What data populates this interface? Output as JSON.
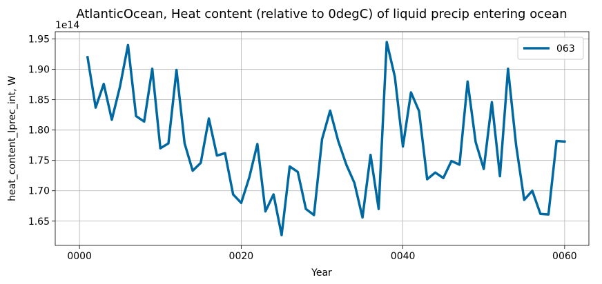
{
  "chart_data": {
    "type": "line",
    "title": "AtlanticOcean, Heat content (relative to 0degC) of liquid precip entering ocean",
    "xlabel": "Year",
    "ylabel": "heat_content_lprec_int, W",
    "y_offset_label": "1e14",
    "xlim": [
      -3,
      63
    ],
    "ylim": [
      1.61,
      1.962
    ],
    "x_ticks": [
      0,
      20,
      40,
      60
    ],
    "x_tick_labels": [
      "0000",
      "0020",
      "0040",
      "0060"
    ],
    "y_ticks": [
      1.65,
      1.7,
      1.75,
      1.8,
      1.85,
      1.9,
      1.95
    ],
    "y_tick_labels": [
      "1.65",
      "1.70",
      "1.75",
      "1.80",
      "1.85",
      "1.90",
      "1.95"
    ],
    "grid": true,
    "legend_position": "top-right",
    "series": [
      {
        "name": "063",
        "color": "#0068a0",
        "x": [
          1,
          2,
          3,
          4,
          5,
          6,
          7,
          8,
          9,
          10,
          11,
          12,
          13,
          14,
          15,
          16,
          17,
          18,
          19,
          20,
          21,
          22,
          23,
          24,
          25,
          26,
          27,
          28,
          29,
          30,
          31,
          32,
          33,
          34,
          35,
          36,
          37,
          38,
          39,
          40,
          41,
          42,
          43,
          44,
          45,
          46,
          47,
          48,
          49,
          50,
          51,
          52,
          53,
          54,
          55,
          56,
          57,
          58,
          59,
          60
        ],
        "values": [
          1.92,
          1.837,
          1.876,
          1.817,
          1.871,
          1.94,
          1.823,
          1.814,
          1.901,
          1.77,
          1.778,
          1.899,
          1.778,
          1.733,
          1.746,
          1.819,
          1.758,
          1.762,
          1.694,
          1.68,
          1.722,
          1.777,
          1.666,
          1.694,
          1.627,
          1.74,
          1.731,
          1.67,
          1.66,
          1.785,
          1.832,
          1.782,
          1.743,
          1.713,
          1.656,
          1.759,
          1.67,
          1.945,
          1.888,
          1.773,
          1.862,
          1.831,
          1.719,
          1.73,
          1.721,
          1.749,
          1.743,
          1.88,
          1.78,
          1.736,
          1.846,
          1.724,
          1.901,
          1.775,
          1.685,
          1.7,
          1.662,
          1.661,
          1.782,
          1.781
        ]
      }
    ]
  }
}
